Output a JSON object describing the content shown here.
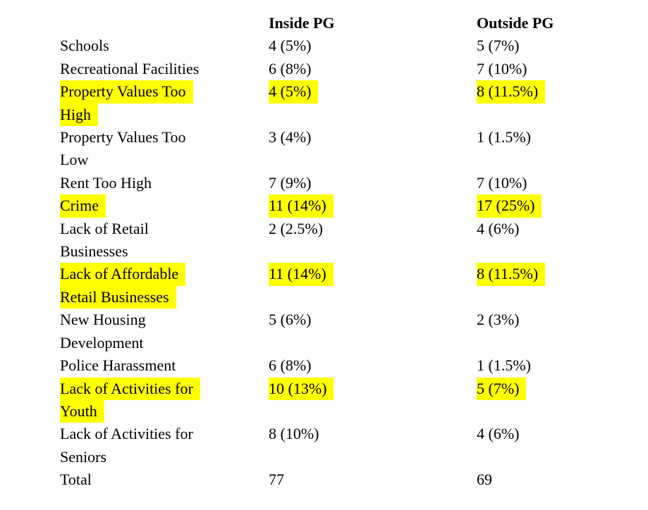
{
  "document": {
    "background_color": "#ffffff",
    "text_color": "#000000",
    "highlight_color": "#ffff00",
    "table": {
      "columns": [
        "Inside PG",
        "Outside PG"
      ],
      "rows": [
        {
          "label": "Schools",
          "lines": [
            "Schools"
          ],
          "inside": "4 (5%)",
          "outside": "5 (7%)",
          "highlight": false
        },
        {
          "label": "Recreational Facilities",
          "lines": [
            "Recreational Facilities"
          ],
          "inside": "6 (8%)",
          "outside": "7 (10%)",
          "highlight": false
        },
        {
          "label": "Property Values Too High",
          "lines": [
            "Property Values Too",
            "High"
          ],
          "inside": "4 (5%)",
          "outside": "8 (11.5%)",
          "highlight": true
        },
        {
          "label": "Property Values Too Low",
          "lines": [
            "Property Values Too",
            "Low"
          ],
          "inside": "3 (4%)",
          "outside": "1 (1.5%)",
          "highlight": false
        },
        {
          "label": "Rent Too High",
          "lines": [
            "Rent Too High"
          ],
          "inside": "7 (9%)",
          "outside": "7 (10%)",
          "highlight": false
        },
        {
          "label": "Crime",
          "lines": [
            "Crime"
          ],
          "inside": "11 (14%)",
          "outside": "17 (25%)",
          "highlight": true
        },
        {
          "label": "Lack of Retail Businesses",
          "lines": [
            "Lack of Retail",
            "Businesses"
          ],
          "inside": "2 (2.5%)",
          "outside": "4 (6%)",
          "highlight": false
        },
        {
          "label": "Lack of Affordable Retail Businesses",
          "lines": [
            "Lack of Affordable",
            "Retail Businesses"
          ],
          "inside": "11 (14%)",
          "outside": "8 (11.5%)",
          "highlight": true
        },
        {
          "label": "New Housing Development",
          "lines": [
            "New Housing",
            "Development"
          ],
          "inside": "5 (6%)",
          "outside": "2 (3%)",
          "highlight": false
        },
        {
          "label": "Police Harassment",
          "lines": [
            "Police Harassment"
          ],
          "inside": "6 (8%)",
          "outside": "1 (1.5%)",
          "highlight": false
        },
        {
          "label": "Lack of Activities for Youth",
          "lines": [
            "Lack of Activities for",
            "Youth"
          ],
          "inside": "10 (13%)",
          "outside": "5 (7%)",
          "highlight": true
        },
        {
          "label": "Lack of Activities for Seniors",
          "lines": [
            "Lack of Activities for",
            "Seniors"
          ],
          "inside": "8 (10%)",
          "outside": "4 (6%)",
          "highlight": false
        },
        {
          "label": "Total",
          "lines": [
            "Total"
          ],
          "inside": "77",
          "outside": "69",
          "highlight": false
        }
      ]
    }
  }
}
